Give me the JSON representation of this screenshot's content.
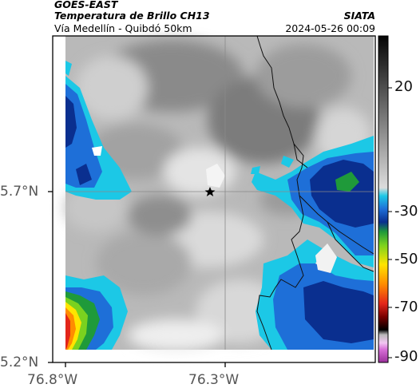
{
  "header": {
    "satellite": "GOES-EAST",
    "product": "Temperatura de Brillo CH13",
    "route": "Vía Medellín - Quibdó 50km",
    "org": "SIATA",
    "datetime": "2024-05-26 00:09"
  },
  "axes": {
    "y_ticks": [
      "5.7°N",
      "5.2°N"
    ],
    "x_ticks": [
      "76.8°W",
      "76.3°W"
    ]
  },
  "colorbar": {
    "ticks": [
      "20",
      "-30",
      "-50",
      "-70",
      "-90"
    ]
  },
  "legend_colors": {
    "cold_blue": "#0a2f8f",
    "mid_blue": "#1e6fd8",
    "cyan": "#1cc8e6",
    "green": "#1f9a3a",
    "yellow": "#ffe400",
    "red": "#e3261a",
    "gray_light": "#e6e6e6",
    "gray_dark": "#5a5a5a"
  },
  "marker": {
    "icon": "star-icon"
  }
}
